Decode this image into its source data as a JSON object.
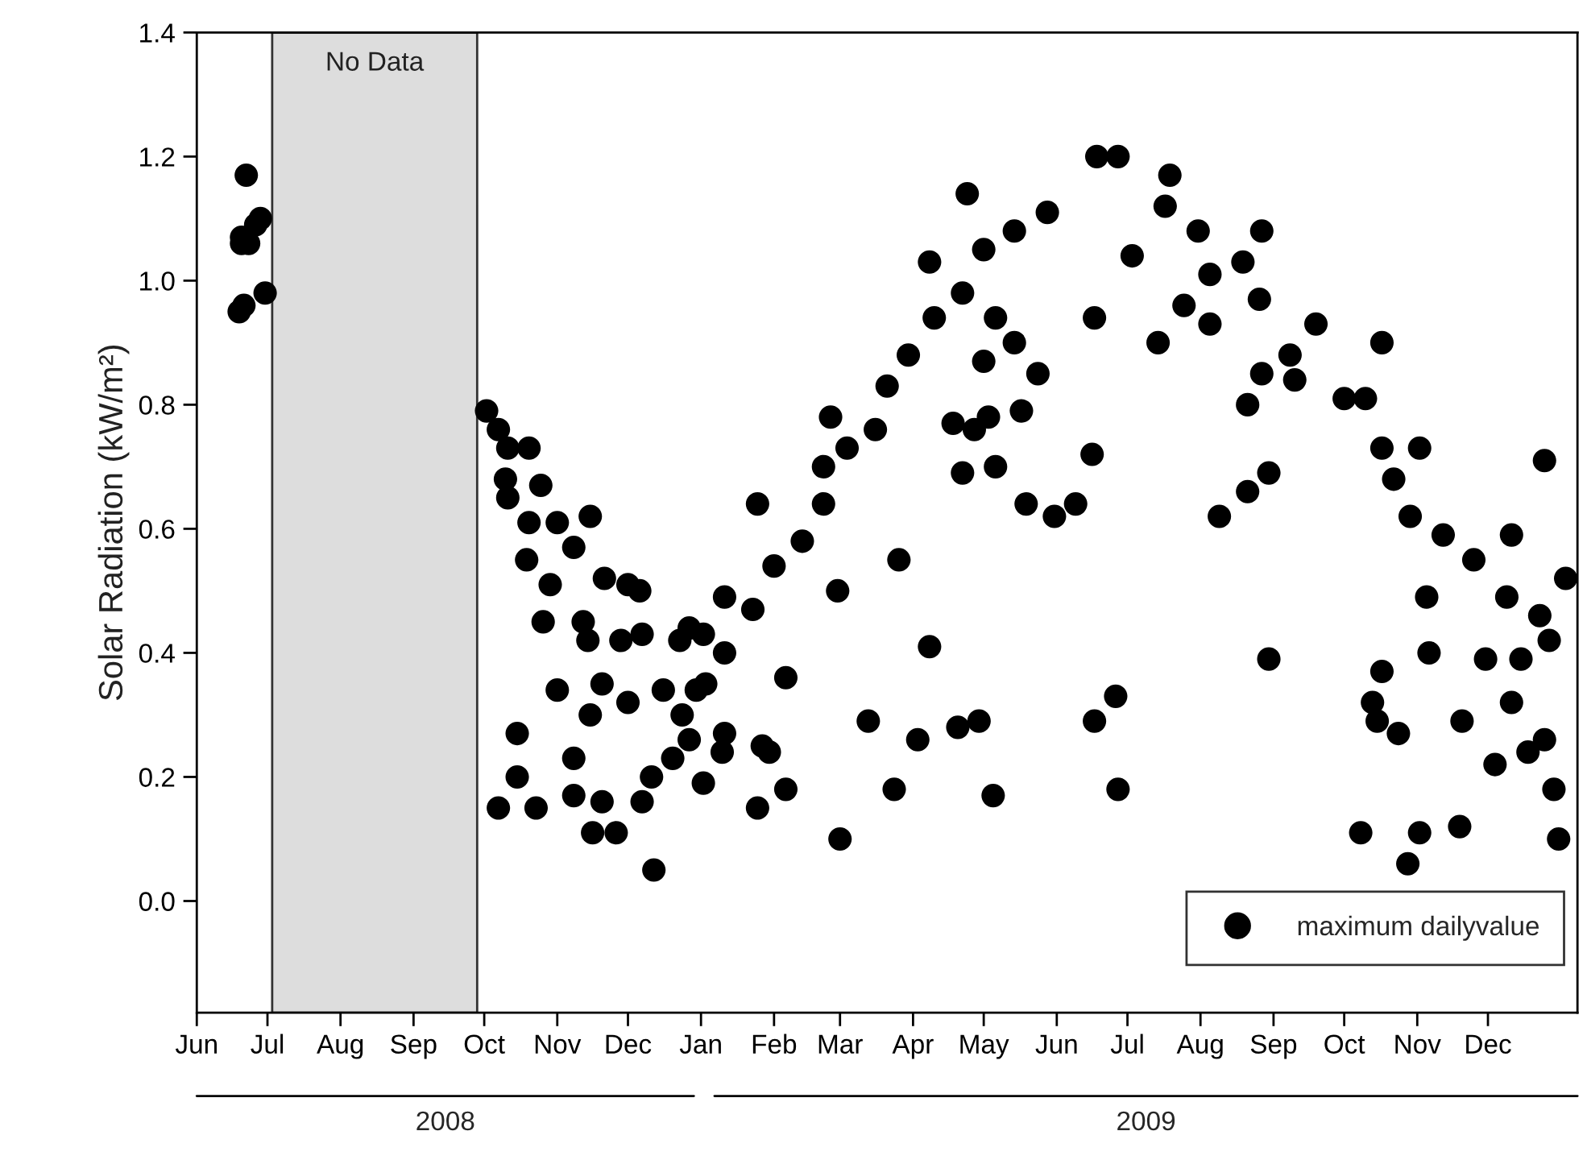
{
  "chart_data": {
    "type": "scatter",
    "ylabel": "Solar Radiation (kW/m²)",
    "xlim": [
      "2008-06-01",
      "2010-01-08"
    ],
    "ylim": [
      -0.18,
      1.4
    ],
    "xticks": [
      {
        "value": "2008-06-01",
        "label": "Jun"
      },
      {
        "value": "2008-07-01",
        "label": "Jul"
      },
      {
        "value": "2008-08-01",
        "label": "Aug"
      },
      {
        "value": "2008-09-01",
        "label": "Sep"
      },
      {
        "value": "2008-10-01",
        "label": "Oct"
      },
      {
        "value": "2008-11-01",
        "label": "Nov"
      },
      {
        "value": "2008-12-01",
        "label": "Dec"
      },
      {
        "value": "2009-01-01",
        "label": "Jan"
      },
      {
        "value": "2009-02-01",
        "label": "Feb"
      },
      {
        "value": "2009-03-01",
        "label": "Mar"
      },
      {
        "value": "2009-04-01",
        "label": "Apr"
      },
      {
        "value": "2009-05-01",
        "label": "May"
      },
      {
        "value": "2009-06-01",
        "label": "Jun"
      },
      {
        "value": "2009-07-01",
        "label": "Jul"
      },
      {
        "value": "2009-08-01",
        "label": "Aug"
      },
      {
        "value": "2009-09-01",
        "label": "Sep"
      },
      {
        "value": "2009-10-01",
        "label": "Oct"
      },
      {
        "value": "2009-11-01",
        "label": "Nov"
      },
      {
        "value": "2009-12-01",
        "label": "Dec"
      }
    ],
    "yticks": [
      {
        "value": 0,
        "label": "0.0"
      },
      0.2,
      0.4,
      0.6,
      0.8,
      {
        "value": 1,
        "label": "1.0"
      },
      1.2,
      1.4
    ],
    "bands": [
      {
        "axis": "x",
        "from": "2008-07-03",
        "to": "2008-09-28",
        "label": "No Data",
        "color": "#dddddd"
      }
    ],
    "annotations": [
      "2008",
      "2009"
    ],
    "legend": "bottom right",
    "marker": "circle",
    "grid": false,
    "series": [
      {
        "name": "maximum dailyvalue",
        "color": "#000000",
        "x": [
          "2008-06-19",
          "2008-06-20",
          "2008-06-21",
          "2008-06-22",
          "2008-06-23",
          "2008-06-26",
          "2008-06-28",
          "2008-06-30",
          "2008-06-20",
          "2008-10-02",
          "2008-10-07",
          "2008-10-11",
          "2008-10-20",
          "2008-10-10",
          "2008-10-11",
          "2008-10-25",
          "2008-10-20",
          "2008-11-01",
          "2008-11-15",
          "2008-10-19",
          "2008-11-08",
          "2008-10-29",
          "2008-10-26",
          "2008-11-12",
          "2008-11-21",
          "2008-12-01",
          "2008-12-06",
          "2008-11-14",
          "2008-11-28",
          "2008-12-07",
          "2008-12-23",
          "2009-01-02",
          "2009-01-11",
          "2009-01-11",
          "2008-11-01",
          "2008-11-20",
          "2008-12-01",
          "2008-12-16",
          "2008-12-30",
          "2008-11-15",
          "2008-12-24",
          "2008-12-27",
          "2009-01-10",
          "2008-10-15",
          "2008-10-15",
          "2008-11-08",
          "2008-10-07",
          "2008-10-23",
          "2008-11-08",
          "2008-11-20",
          "2008-12-07",
          "2008-12-11",
          "2008-12-20",
          "2009-01-02",
          "2008-11-16",
          "2008-11-26",
          "2008-12-12",
          "2008-12-27",
          "2009-01-03",
          "2009-01-23",
          "2009-02-01",
          "2009-02-13",
          "2009-02-22",
          "2009-02-22",
          "2009-03-04",
          "2009-03-16",
          "2009-03-21",
          "2009-03-30",
          "2009-04-10",
          "2009-04-22",
          "2009-05-01",
          "2009-05-14",
          "2009-05-28",
          "2009-06-18",
          "2009-06-27",
          "2009-07-03",
          "2009-01-25",
          "2009-02-25",
          "2009-04-08",
          "2009-04-24",
          "2009-03-26",
          "2009-02-28",
          "2009-01-30",
          "2009-02-06",
          "2009-01-11",
          "2009-01-27",
          "2009-02-06",
          "2009-01-25",
          "2009-03-01",
          "2009-03-13",
          "2009-04-03",
          "2009-04-08",
          "2009-03-24",
          "2009-04-20",
          "2009-04-29",
          "2009-05-05",
          "2009-06-17",
          "2009-06-26",
          "2009-06-27",
          "2009-04-18",
          "2009-04-27",
          "2009-05-03",
          "2009-04-22",
          "2009-05-06",
          "2009-05-17",
          "2009-05-19",
          "2009-05-31",
          "2009-06-09",
          "2009-06-16",
          "2009-05-01",
          "2009-05-14",
          "2009-05-24",
          "2009-05-06",
          "2009-06-17",
          "2009-07-14",
          "2009-07-19",
          "2009-07-17",
          "2009-07-31",
          "2009-08-27",
          "2009-07-25",
          "2009-08-05",
          "2009-08-19",
          "2009-08-26",
          "2009-08-05",
          "2009-09-08",
          "2009-09-19",
          "2009-09-10",
          "2009-10-01",
          "2009-10-10",
          "2009-10-17",
          "2009-10-22",
          "2009-10-29",
          "2009-11-12",
          "2009-11-25",
          "2009-12-09",
          "2009-12-23",
          "2010-01-03",
          "2009-08-27",
          "2009-08-21",
          "2009-08-30",
          "2009-08-21",
          "2009-08-09",
          "2009-10-17",
          "2009-11-02",
          "2009-12-25",
          "2009-12-11",
          "2009-11-05",
          "2009-08-30",
          "2009-10-17",
          "2009-10-13",
          "2009-10-15",
          "2009-10-24",
          "2009-11-06",
          "2009-11-20",
          "2009-11-30",
          "2009-12-15",
          "2009-12-27",
          "2009-12-11",
          "2009-12-04",
          "2009-12-18",
          "2009-12-25",
          "2009-12-29",
          "2009-10-08",
          "2009-11-02",
          "2009-10-28",
          "2009-11-19",
          "2009-12-31"
        ],
        "values": [
          0.95,
          1.07,
          0.96,
          1.17,
          1.06,
          1.09,
          1.1,
          0.98,
          1.06,
          0.79,
          0.76,
          0.73,
          0.73,
          0.68,
          0.65,
          0.67,
          0.61,
          0.61,
          0.62,
          0.55,
          0.57,
          0.51,
          0.45,
          0.45,
          0.52,
          0.51,
          0.5,
          0.42,
          0.42,
          0.43,
          0.42,
          0.43,
          0.49,
          0.4,
          0.34,
          0.35,
          0.32,
          0.34,
          0.34,
          0.3,
          0.3,
          0.26,
          0.24,
          0.27,
          0.2,
          0.23,
          0.15,
          0.15,
          0.17,
          0.16,
          0.16,
          0.2,
          0.23,
          0.19,
          0.11,
          0.11,
          0.05,
          0.44,
          0.35,
          0.47,
          0.54,
          0.58,
          0.64,
          0.7,
          0.73,
          0.76,
          0.83,
          0.88,
          0.94,
          0.98,
          1.05,
          1.08,
          1.11,
          1.2,
          1.2,
          1.04,
          0.64,
          0.78,
          1.03,
          1.14,
          0.55,
          0.5,
          0.24,
          0.36,
          0.27,
          0.25,
          0.18,
          0.15,
          0.1,
          0.29,
          0.26,
          0.41,
          0.18,
          0.28,
          0.29,
          0.17,
          0.29,
          0.33,
          0.18,
          0.77,
          0.76,
          0.78,
          0.69,
          0.7,
          0.79,
          0.64,
          0.62,
          0.64,
          0.72,
          0.87,
          0.9,
          0.85,
          0.94,
          0.94,
          0.9,
          1.17,
          1.12,
          1.08,
          1.08,
          0.96,
          1.01,
          1.03,
          0.97,
          0.93,
          0.88,
          0.93,
          0.84,
          0.81,
          0.81,
          0.73,
          0.68,
          0.62,
          0.59,
          0.55,
          0.49,
          0.46,
          0.52,
          0.85,
          0.8,
          0.69,
          0.66,
          0.62,
          0.9,
          0.73,
          0.71,
          0.59,
          0.49,
          0.39,
          0.37,
          0.32,
          0.29,
          0.27,
          0.4,
          0.29,
          0.39,
          0.39,
          0.42,
          0.32,
          0.22,
          0.24,
          0.26,
          0.18,
          0.11,
          0.11,
          0.06,
          0.12,
          0.1
        ]
      }
    ]
  }
}
